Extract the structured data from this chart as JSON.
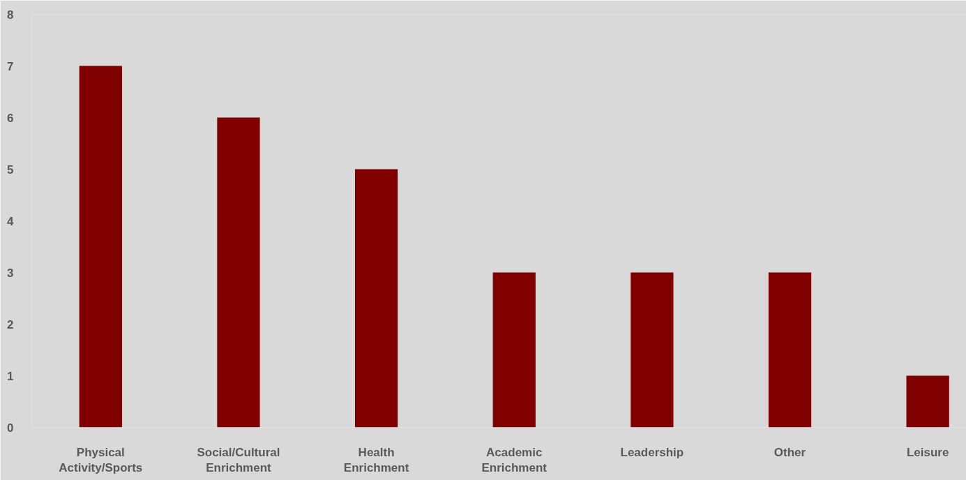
{
  "chart_data": {
    "type": "bar",
    "categories": [
      "Physical Activity/Sports",
      "Social/Cultural Enrichment",
      "Health Enrichment",
      "Academic Enrichment",
      "Leadership",
      "Other",
      "Leisure"
    ],
    "values": [
      7,
      6,
      5,
      3,
      3,
      3,
      1
    ],
    "color": "#800000",
    "ylim": [
      0,
      8
    ],
    "yticks": [
      0,
      1,
      2,
      3,
      4,
      5,
      6,
      7,
      8
    ],
    "grid": false
  }
}
